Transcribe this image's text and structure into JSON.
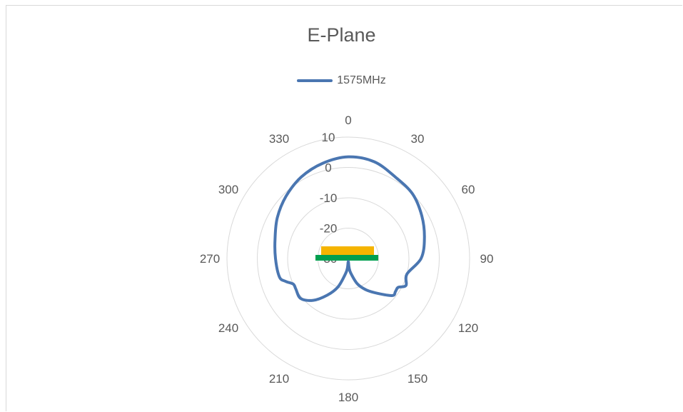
{
  "chart_data": {
    "type": "radar",
    "title": "E-Plane",
    "legend": "top",
    "series": [
      {
        "name": "1575MHz",
        "color": "#4a76b1",
        "theta": [
          0,
          15,
          30,
          45,
          60,
          75,
          90,
          105,
          115,
          120,
          125,
          130,
          140,
          150,
          160,
          170,
          175,
          180,
          185,
          190,
          200,
          210,
          220,
          230,
          240,
          245,
          250,
          255,
          270,
          285,
          300,
          315,
          330,
          345
        ],
        "r": [
          3.5,
          3,
          1,
          0,
          -2,
          -4,
          -6,
          -10,
          -9,
          -11,
          -11,
          -11,
          -15,
          -18,
          -21,
          -25,
          -27,
          -29,
          -27,
          -25,
          -20,
          -16,
          -12,
          -9.5,
          -10,
          -10,
          -8,
          -6.5,
          -6,
          -5,
          -3,
          -1,
          1,
          2.5
        ]
      }
    ],
    "radial_ticks": [
      "10",
      "0",
      "-10",
      "-20",
      "-30"
    ],
    "radial_range": [
      -30,
      10
    ],
    "angle_ticks": [
      "0",
      "30",
      "60",
      "90",
      "120",
      "150",
      "180",
      "210",
      "240",
      "270",
      "300",
      "330"
    ],
    "grid": true
  },
  "colors": {
    "gridline": "#d9d9d9",
    "board": "#009f4f",
    "chip": "#f5b400"
  }
}
